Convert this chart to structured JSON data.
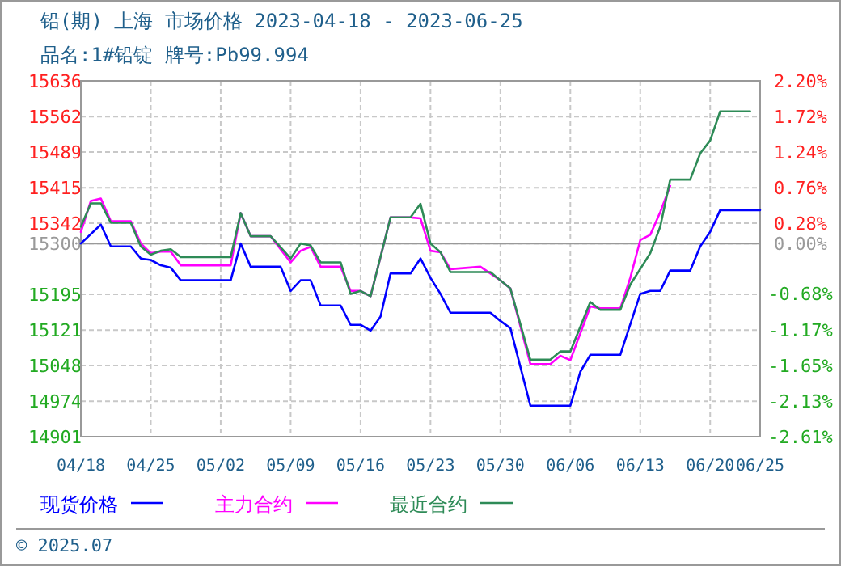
{
  "chart_data": {
    "type": "line",
    "title": "铅(期) 上海 市场价格 2023-04-18 - 2023-06-25",
    "subtitle": "品名:1#铅锭 牌号:Pb99.994",
    "annotations": [
      "© 2025.07"
    ],
    "xlim": [
      "2023-04-18",
      "2023-06-25"
    ],
    "xticks": [
      {
        "value": "2023-04-18",
        "label": "04/18"
      },
      {
        "value": "2023-04-25",
        "label": "04/25"
      },
      {
        "value": "2023-05-02",
        "label": "05/02"
      },
      {
        "value": "2023-05-09",
        "label": "05/09"
      },
      {
        "value": "2023-05-16",
        "label": "05/16"
      },
      {
        "value": "2023-05-23",
        "label": "05/23"
      },
      {
        "value": "2023-05-30",
        "label": "05/30"
      },
      {
        "value": "2023-06-06",
        "label": "06/06"
      },
      {
        "value": "2023-06-13",
        "label": "06/13"
      },
      {
        "value": "2023-06-20",
        "label": "06/20"
      },
      {
        "value": "2023-06-25",
        "label": "06/25"
      }
    ],
    "ylim": [
      14901,
      15636
    ],
    "yticks": [
      14901,
      14974,
      15048,
      15121,
      15195,
      15300,
      15342,
      15415,
      15489,
      15562,
      15636
    ],
    "y2lim": [
      -2.61,
      2.2
    ],
    "y2ticks": [
      {
        "value": -2.61,
        "label": "-2.61%"
      },
      {
        "value": -2.13,
        "label": "-2.13%"
      },
      {
        "value": -1.65,
        "label": "-1.65%"
      },
      {
        "value": -1.17,
        "label": "-1.17%"
      },
      {
        "value": -0.68,
        "label": "-0.68%"
      },
      {
        "value": 0,
        "label": "0.00%"
      },
      {
        "value": 0.28,
        "label": "0.28%"
      },
      {
        "value": 0.76,
        "label": "0.76%"
      },
      {
        "value": 1.24,
        "label": "1.24%"
      },
      {
        "value": 1.72,
        "label": "1.72%"
      },
      {
        "value": 2.2,
        "label": "2.20%"
      }
    ],
    "ref_lines": [
      {
        "axis": "y",
        "value": 15300,
        "color": "#999999"
      }
    ],
    "grid": true,
    "legend": "bottom",
    "series": [
      {
        "name": "现货价格",
        "color": "#0000ff",
        "x": [
          "2023-04-18",
          "2023-04-20",
          "2023-04-21",
          "2023-04-23",
          "2023-04-24",
          "2023-04-25",
          "2023-04-26",
          "2023-04-27",
          "2023-04-28",
          "2023-05-03",
          "2023-05-04",
          "2023-05-05",
          "2023-05-08",
          "2023-05-09",
          "2023-05-10",
          "2023-05-11",
          "2023-05-12",
          "2023-05-14",
          "2023-05-15",
          "2023-05-16",
          "2023-05-17",
          "2023-05-18",
          "2023-05-19",
          "2023-05-21",
          "2023-05-22",
          "2023-05-23",
          "2023-05-24",
          "2023-05-25",
          "2023-05-29",
          "2023-05-30",
          "2023-05-31",
          "2023-06-02",
          "2023-06-06",
          "2023-06-07",
          "2023-06-08",
          "2023-06-11",
          "2023-06-13",
          "2023-06-14",
          "2023-06-15",
          "2023-06-16",
          "2023-06-18",
          "2023-06-19",
          "2023-06-20",
          "2023-06-21",
          "2023-06-25"
        ],
        "values": [
          15300,
          15339,
          15294,
          15294,
          15269,
          15266,
          15255,
          15250,
          15224,
          15224,
          15300,
          15252,
          15252,
          15202,
          15224,
          15224,
          15172,
          15172,
          15132,
          15132,
          15120,
          15149,
          15238,
          15238,
          15269,
          15229,
          15196,
          15157,
          15157,
          15140,
          15125,
          14965,
          14965,
          15035,
          15070,
          15070,
          15196,
          15202,
          15202,
          15244,
          15244,
          15294,
          15324,
          15369,
          15369
        ]
      },
      {
        "name": "主力合约",
        "color": "#ff00ff",
        "x": [
          "2023-04-18",
          "2023-04-19",
          "2023-04-20",
          "2023-04-21",
          "2023-04-23",
          "2023-04-24",
          "2023-04-25",
          "2023-04-26",
          "2023-04-27",
          "2023-04-28",
          "2023-05-03",
          "2023-05-04",
          "2023-05-05",
          "2023-05-07",
          "2023-05-09",
          "2023-05-10",
          "2023-05-11",
          "2023-05-12",
          "2023-05-14",
          "2023-05-15",
          "2023-05-16",
          "2023-05-17",
          "2023-05-19",
          "2023-05-21",
          "2023-05-22",
          "2023-05-23",
          "2023-05-24",
          "2023-05-25",
          "2023-05-28",
          "2023-05-30",
          "2023-05-31",
          "2023-06-02",
          "2023-06-04",
          "2023-06-05",
          "2023-06-06",
          "2023-06-08",
          "2023-06-09",
          "2023-06-11",
          "2023-06-12",
          "2023-06-13",
          "2023-06-14",
          "2023-06-15",
          "2023-06-16"
        ],
        "values": [
          15324,
          15388,
          15393,
          15346,
          15346,
          15300,
          15280,
          15283,
          15283,
          15255,
          15255,
          15363,
          15315,
          15315,
          15261,
          15285,
          15293,
          15252,
          15252,
          15202,
          15202,
          15191,
          15354,
          15354,
          15352,
          15285,
          15282,
          15247,
          15252,
          15224,
          15207,
          15051,
          15051,
          15068,
          15059,
          15170,
          15166,
          15166,
          15229,
          15307,
          15318,
          15365,
          15419
        ]
      },
      {
        "name": "最近合约",
        "color": "#2e8b57",
        "x": [
          "2023-04-18",
          "2023-04-19",
          "2023-04-20",
          "2023-04-21",
          "2023-04-23",
          "2023-04-24",
          "2023-04-25",
          "2023-04-26",
          "2023-04-27",
          "2023-04-28",
          "2023-05-03",
          "2023-05-04",
          "2023-05-05",
          "2023-05-07",
          "2023-05-09",
          "2023-05-10",
          "2023-05-11",
          "2023-05-12",
          "2023-05-14",
          "2023-05-15",
          "2023-05-16",
          "2023-05-17",
          "2023-05-19",
          "2023-05-21",
          "2023-05-22",
          "2023-05-23",
          "2023-05-24",
          "2023-05-25",
          "2023-05-29",
          "2023-05-30",
          "2023-05-31",
          "2023-06-02",
          "2023-06-04",
          "2023-06-05",
          "2023-06-06",
          "2023-06-08",
          "2023-06-09",
          "2023-06-11",
          "2023-06-12",
          "2023-06-14",
          "2023-06-15",
          "2023-06-16",
          "2023-06-18",
          "2023-06-19",
          "2023-06-20",
          "2023-06-21",
          "2023-06-24"
        ],
        "values": [
          15335,
          15383,
          15383,
          15343,
          15343,
          15294,
          15277,
          15285,
          15288,
          15272,
          15272,
          15363,
          15315,
          15315,
          15269,
          15300,
          15296,
          15261,
          15261,
          15196,
          15202,
          15191,
          15354,
          15354,
          15382,
          15300,
          15282,
          15241,
          15241,
          15224,
          15207,
          15060,
          15060,
          15077,
          15077,
          15179,
          15163,
          15163,
          15215,
          15280,
          15335,
          15432,
          15432,
          15486,
          15513,
          15573,
          15573
        ]
      }
    ]
  }
}
